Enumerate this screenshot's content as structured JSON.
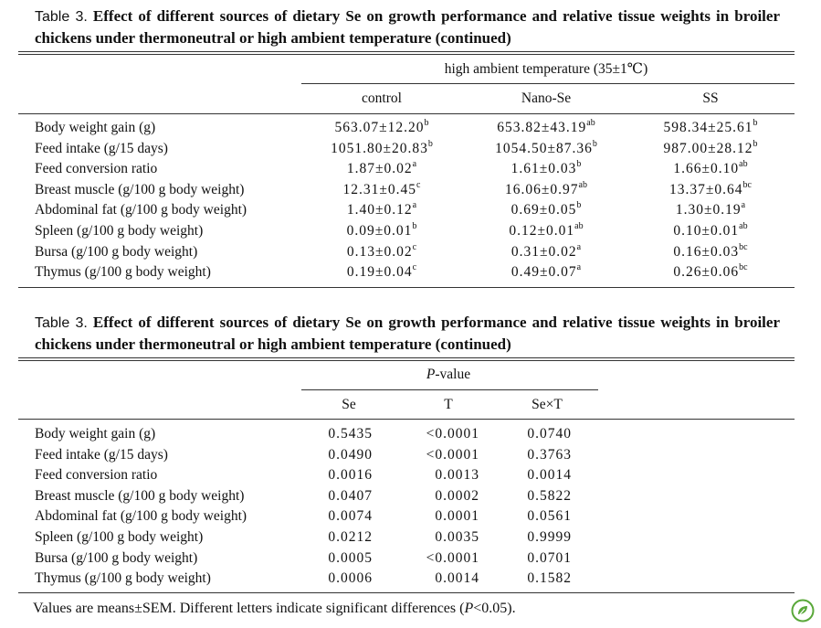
{
  "table1": {
    "label": "Table 3.",
    "title": "Effect of different sources of dietary Se on growth performance and relative tissue weights in broiler chickens under thermoneutral or high ambient temperature (continued)",
    "group_header": "high ambient temperature (35±1℃)",
    "columns": [
      "control",
      "Nano-Se",
      "SS"
    ],
    "rows": [
      {
        "label": "Body weight gain (g)",
        "cells": [
          {
            "v": "563.07±12.20",
            "s": "b"
          },
          {
            "v": "653.82±43.19",
            "s": "ab"
          },
          {
            "v": "598.34±25.61",
            "s": "b"
          }
        ]
      },
      {
        "label": "Feed intake (g/15 days)",
        "cells": [
          {
            "v": "1051.80±20.83",
            "s": "b"
          },
          {
            "v": "1054.50±87.36",
            "s": "b"
          },
          {
            "v": "987.00±28.12",
            "s": "b"
          }
        ]
      },
      {
        "label": "Feed conversion ratio",
        "cells": [
          {
            "v": "1.87±0.02",
            "s": "a"
          },
          {
            "v": "1.61±0.03",
            "s": "b"
          },
          {
            "v": "1.66±0.10",
            "s": "ab"
          }
        ]
      },
      {
        "label": "Breast muscle (g/100 g body weight)",
        "cells": [
          {
            "v": "12.31±0.45",
            "s": "c"
          },
          {
            "v": "16.06±0.97",
            "s": "ab"
          },
          {
            "v": "13.37±0.64",
            "s": "bc"
          }
        ]
      },
      {
        "label": "Abdominal fat (g/100 g body weight)",
        "cells": [
          {
            "v": "1.40±0.12",
            "s": "a"
          },
          {
            "v": "0.69±0.05",
            "s": "b"
          },
          {
            "v": "1.30±0.19",
            "s": "a"
          }
        ]
      },
      {
        "label": "Spleen (g/100 g body weight)",
        "cells": [
          {
            "v": "0.09±0.01",
            "s": "b"
          },
          {
            "v": "0.12±0.01",
            "s": "ab"
          },
          {
            "v": "0.10±0.01",
            "s": "ab"
          }
        ]
      },
      {
        "label": "Bursa (g/100 g body weight)",
        "cells": [
          {
            "v": "0.13±0.02",
            "s": "c"
          },
          {
            "v": "0.31±0.02",
            "s": "a"
          },
          {
            "v": "0.16±0.03",
            "s": "bc"
          }
        ]
      },
      {
        "label": "Thymus (g/100 g body weight)",
        "cells": [
          {
            "v": "0.19±0.04",
            "s": "c"
          },
          {
            "v": "0.49±0.07",
            "s": "a"
          },
          {
            "v": "0.26±0.06",
            "s": "bc"
          }
        ]
      }
    ]
  },
  "table2": {
    "label": "Table 3.",
    "title": "Effect of different sources of dietary Se on growth performance and relative tissue weights in broiler chickens under thermoneutral or high ambient temperature (continued)",
    "group_header_italic": "P",
    "group_header_rest": "-value",
    "columns": [
      "Se",
      "T",
      "Se×T"
    ],
    "rows": [
      {
        "label": "Body weight gain (g)",
        "cells": [
          "0.5435",
          "<0.0001",
          "0.0740"
        ]
      },
      {
        "label": "Feed intake (g/15 days)",
        "cells": [
          "0.0490",
          "<0.0001",
          "0.3763"
        ]
      },
      {
        "label": "Feed conversion ratio",
        "cells": [
          "0.0016",
          "0.0013",
          "0.0014"
        ]
      },
      {
        "label": "Breast muscle (g/100 g body weight)",
        "cells": [
          "0.0407",
          "0.0002",
          "0.5822"
        ]
      },
      {
        "label": "Abdominal fat (g/100 g body weight)",
        "cells": [
          "0.0074",
          "0.0001",
          "0.0561"
        ]
      },
      {
        "label": "Spleen (g/100 g body weight)",
        "cells": [
          "0.0212",
          "0.0035",
          "0.9999"
        ]
      },
      {
        "label": "Bursa (g/100 g body weight)",
        "cells": [
          "0.0005",
          "<0.0001",
          "0.0701"
        ]
      },
      {
        "label": "Thymus (g/100 g body weight)",
        "cells": [
          "0.0006",
          "0.0014",
          "0.1582"
        ]
      }
    ]
  },
  "footnote": {
    "part1": "Values are means±SEM.  Different letters indicate significant differences (",
    "italic": "P",
    "part2": "<0.05)."
  },
  "logo_icon": "leaf-badge-icon",
  "colors": {
    "text": "#111111",
    "rule": "#333333",
    "logo": "#5aa83a"
  }
}
